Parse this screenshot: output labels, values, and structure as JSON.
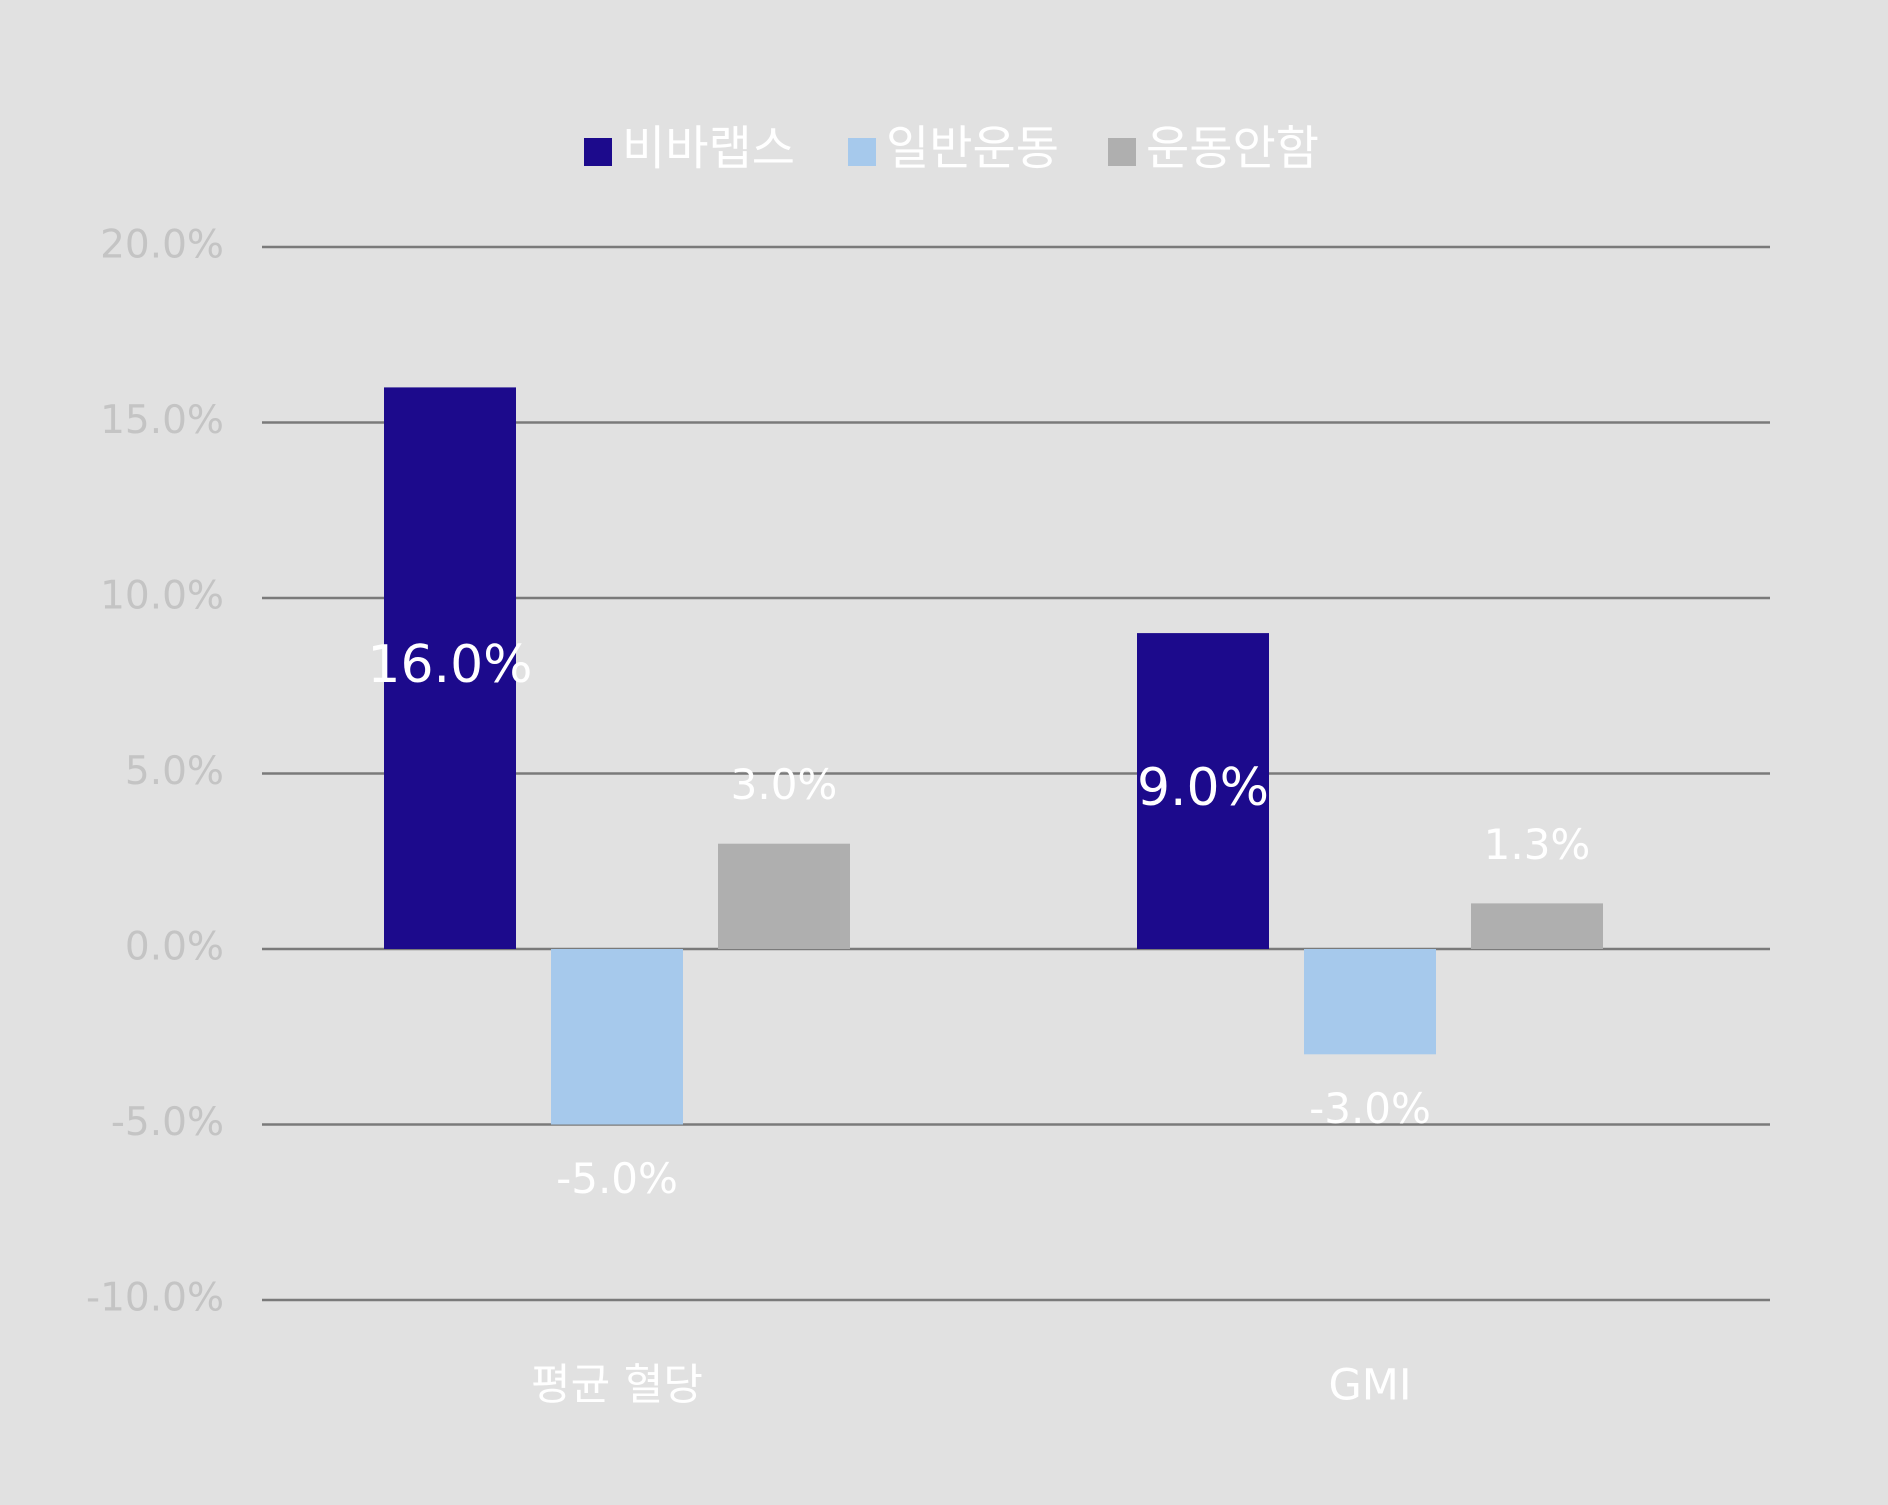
{
  "chart_data": {
    "type": "bar",
    "categories": [
      "평균 혈당",
      "GMI"
    ],
    "series": [
      {
        "name": "비바랩스",
        "values": [
          16.0,
          9.0
        ],
        "labels": [
          "16.0%",
          "9.0%"
        ],
        "color": "#1c0a8c"
      },
      {
        "name": "일반운동",
        "values": [
          -5.0,
          -3.0
        ],
        "labels": [
          "-5.0%",
          "-3.0%"
        ],
        "color": "#a6c9ec"
      },
      {
        "name": "운동안함",
        "values": [
          3.0,
          1.3
        ],
        "labels": [
          "3.0%",
          "1.3%"
        ],
        "color": "#afafaf"
      }
    ],
    "ylim": [
      -10,
      20
    ],
    "yticks": [
      20,
      15,
      10,
      5,
      0,
      -5,
      -10
    ],
    "ytick_labels": [
      "20.0%",
      "15.0%",
      "10.0%",
      "5.0%",
      "0.0%",
      "-5.0%",
      "-10.0%"
    ],
    "title": "",
    "xlabel": "",
    "ylabel": "",
    "legend_position": "top-center",
    "grid": true,
    "colors": {
      "background": "#e1e1e1",
      "gridline": "#7a7a7a",
      "tick_label": "#c4c4c4",
      "text": "#ffffff"
    }
  }
}
